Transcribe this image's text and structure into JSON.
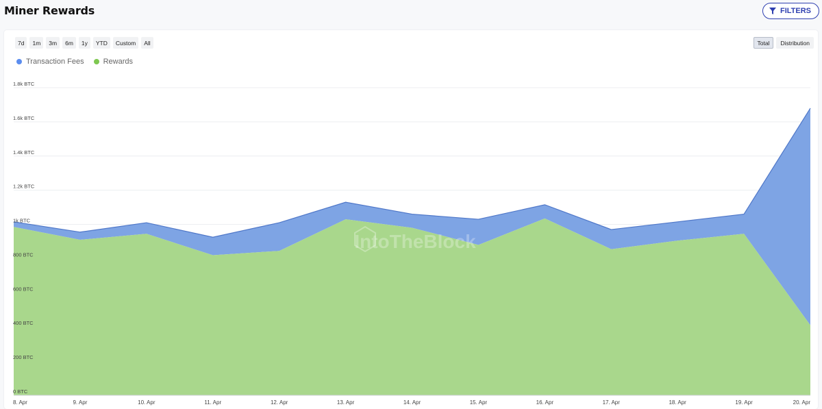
{
  "header": {
    "title": "Miner Rewards",
    "filters_label": "FILTERS"
  },
  "range_buttons": [
    "7d",
    "1m",
    "3m",
    "6m",
    "1y",
    "YTD",
    "Custom",
    "All"
  ],
  "view_buttons": [
    "Total",
    "Distribution"
  ],
  "active_view": "Total",
  "watermark": "IntoTheBlock",
  "colors": {
    "fees": "#7ea4e4",
    "fees_line": "#4f77c8",
    "rewards": "#a9d78c",
    "accent": "#2e3fb0",
    "legend_fees": "#5b8def",
    "legend_rewards": "#7ec850"
  },
  "chart_data": {
    "type": "area",
    "stacked": true,
    "x": [
      "8. Apr",
      "9. Apr",
      "10. Apr",
      "11. Apr",
      "12. Apr",
      "13. Apr",
      "14. Apr",
      "15. Apr",
      "16. Apr",
      "17. Apr",
      "18. Apr",
      "19. Apr",
      "20. Apr"
    ],
    "series": [
      {
        "name": "Transaction Fees",
        "values": [
          30,
          45,
          65,
          105,
          165,
          100,
          80,
          150,
          80,
          115,
          110,
          115,
          1270
        ]
      },
      {
        "name": "Rewards",
        "values": [
          985,
          910,
          945,
          820,
          845,
          1030,
          980,
          880,
          1035,
          855,
          905,
          945,
          410
        ]
      }
    ],
    "y_tick_labels": [
      "0 BTC",
      "200 BTC",
      "400 BTC",
      "600 BTC",
      "800 BTC",
      "1k BTC",
      "1.2k BTC",
      "1.4k BTC",
      "1.6k BTC",
      "1.8k BTC"
    ],
    "y_ticks": [
      0,
      200,
      400,
      600,
      800,
      1000,
      1200,
      1400,
      1600,
      1800
    ],
    "ylim": [
      0,
      1800
    ],
    "grid": true,
    "legend_position": "top-left"
  }
}
